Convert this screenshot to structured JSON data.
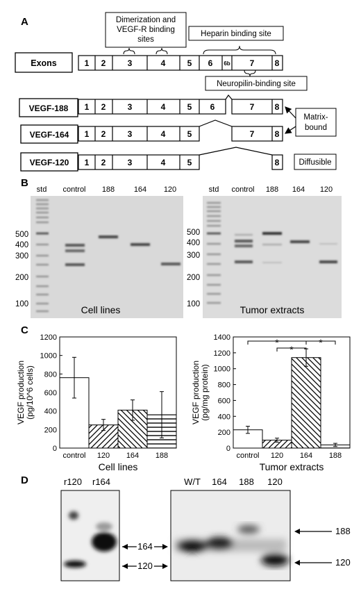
{
  "panels": {
    "A": "A",
    "B": "B",
    "C": "C",
    "D": "D"
  },
  "panel_a": {
    "callout_dimerization": [
      "Dimerization and",
      "VEGF-R binding",
      "sites"
    ],
    "callout_heparin": "Heparin binding site",
    "callout_neuropilin": "Neuropilin-binding site",
    "callout_matrix": [
      "Matrix-",
      "bound"
    ],
    "callout_diffusible": "Diffusible",
    "rows": [
      {
        "label": "Exons",
        "exons": [
          "1",
          "2",
          "3",
          "4",
          "5",
          "6",
          "6b",
          "7",
          "8"
        ]
      },
      {
        "label": "VEGF-188",
        "exons": [
          "1",
          "2",
          "3",
          "4",
          "5",
          "6",
          "7",
          "8"
        ]
      },
      {
        "label": "VEGF-164",
        "exons": [
          "1",
          "2",
          "3",
          "4",
          "5",
          "7",
          "8"
        ]
      },
      {
        "label": "VEGF-120",
        "exons": [
          "1",
          "2",
          "3",
          "4",
          "5",
          "8"
        ]
      }
    ]
  },
  "panel_b": {
    "gels": [
      {
        "lanes": [
          "std",
          "control",
          "188",
          "164",
          "120"
        ],
        "markers": [
          "500",
          "400",
          "300",
          "200",
          "100"
        ],
        "caption": "Cell lines"
      },
      {
        "lanes": [
          "std",
          "control",
          "188",
          "164",
          "120"
        ],
        "markers": [
          "500",
          "400",
          "300",
          "200",
          "100"
        ],
        "caption": "Tumor extracts"
      }
    ]
  },
  "chart_data": [
    {
      "type": "bar",
      "categories": [
        "control",
        "120",
        "164",
        "188"
      ],
      "values": [
        760,
        250,
        410,
        360
      ],
      "error": [
        220,
        60,
        110,
        250
      ],
      "patterns": [
        "none",
        "diag-up",
        "diag-down",
        "horizontal"
      ],
      "ylabel": [
        "VEGF production",
        "(pg/10^6 cells)"
      ],
      "xlabel": "Cell lines",
      "ylim": [
        0,
        1200
      ],
      "yticks": [
        "0",
        "200",
        "400",
        "600",
        "800",
        "1000",
        "1200"
      ]
    },
    {
      "type": "bar",
      "categories": [
        "control",
        "120",
        "164",
        "188"
      ],
      "values": [
        230,
        100,
        1140,
        40
      ],
      "error": [
        45,
        25,
        110,
        20
      ],
      "patterns": [
        "none",
        "diag-up",
        "diag-down",
        "horizontal"
      ],
      "ylabel": [
        "VEGF production",
        "(pg/mg protein)"
      ],
      "xlabel": "Tumor extracts",
      "ylim": [
        0,
        1400
      ],
      "yticks": [
        "0",
        "200",
        "400",
        "600",
        "800",
        "1000",
        "1200",
        "1400"
      ],
      "significance": "*"
    }
  ],
  "panel_d": {
    "left": {
      "lanes": [
        "r120",
        "r164"
      ],
      "arrows": [
        "164",
        "120"
      ]
    },
    "right": {
      "lanes": [
        "W/T",
        "164",
        "188",
        "120"
      ],
      "arrows": [
        "188",
        "120"
      ]
    }
  }
}
